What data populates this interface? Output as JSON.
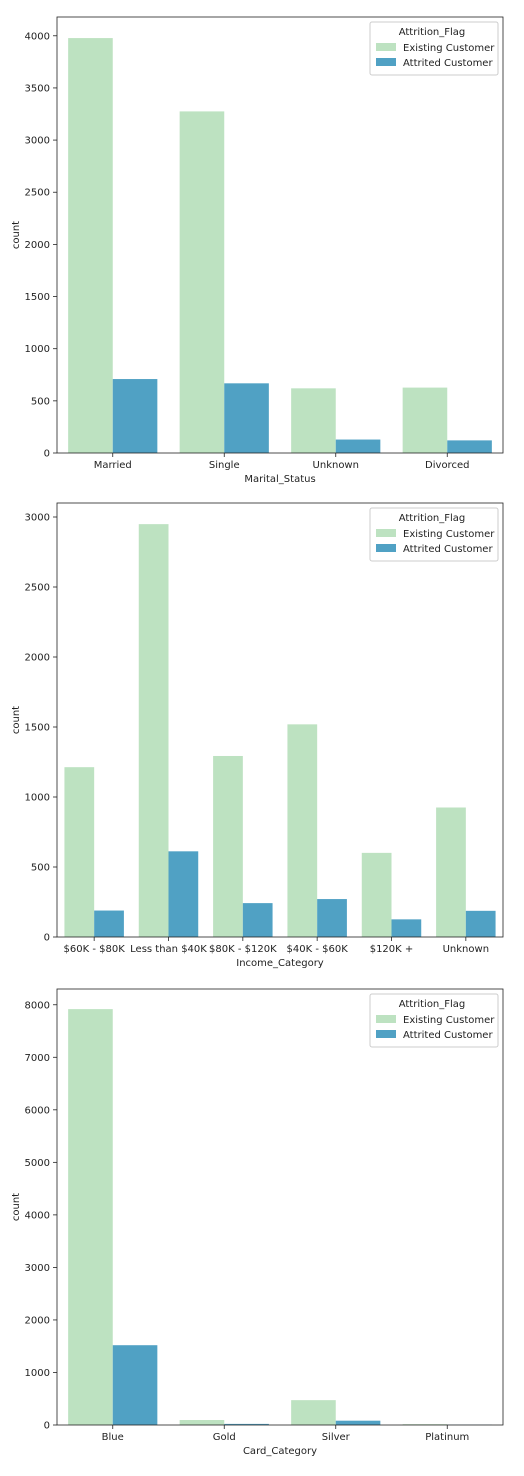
{
  "colors": {
    "existing": "#bde2c1",
    "attrited": "#50a1c4",
    "axis": "#222222",
    "legend_border": "#cccccc"
  },
  "chart_data": [
    {
      "type": "bar",
      "xlabel": "Marital_Status",
      "ylabel": "count",
      "categories": [
        "Married",
        "Single",
        "Unknown",
        "Divorced"
      ],
      "yticks": [
        0,
        500,
        1000,
        1500,
        2000,
        2500,
        3000,
        3500,
        4000
      ],
      "ylim": [
        0,
        4180
      ],
      "legend": {
        "title": "Attrition_Flag",
        "placement": "top-right"
      },
      "series": [
        {
          "name": "Existing Customer",
          "values": [
            3978,
            3275,
            620,
            627
          ]
        },
        {
          "name": "Attrited Customer",
          "values": [
            709,
            668,
            129,
            121
          ]
        }
      ]
    },
    {
      "type": "bar",
      "xlabel": "Income_Category",
      "ylabel": "count",
      "categories": [
        "$60K - $80K",
        "Less than $40K",
        "$80K - $120K",
        "$40K - $60K",
        "$120K +",
        "Unknown"
      ],
      "yticks": [
        0,
        500,
        1000,
        1500,
        2000,
        2500,
        3000
      ],
      "ylim": [
        0,
        3100
      ],
      "legend": {
        "title": "Attrition_Flag",
        "placement": "top-right"
      },
      "series": [
        {
          "name": "Existing Customer",
          "values": [
            1213,
            2949,
            1293,
            1519,
            601,
            925
          ]
        },
        {
          "name": "Attrited Customer",
          "values": [
            189,
            612,
            242,
            271,
            126,
            187
          ]
        }
      ]
    },
    {
      "type": "bar",
      "xlabel": "Card_Category",
      "ylabel": "count",
      "categories": [
        "Blue",
        "Gold",
        "Silver",
        "Platinum"
      ],
      "yticks": [
        0,
        1000,
        2000,
        3000,
        4000,
        5000,
        6000,
        7000,
        8000
      ],
      "ylim": [
        0,
        8300
      ],
      "legend": {
        "title": "Attrition_Flag",
        "placement": "top-right"
      },
      "series": [
        {
          "name": "Existing Customer",
          "values": [
            7917,
            95,
            473,
            15
          ]
        },
        {
          "name": "Attrited Customer",
          "values": [
            1519,
            21,
            82,
            5
          ]
        }
      ]
    }
  ]
}
